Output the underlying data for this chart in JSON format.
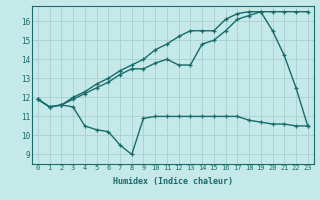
{
  "xlabel": "Humidex (Indice chaleur)",
  "bg_color": "#c5e8e8",
  "grid_color": "#aad4d4",
  "line_color": "#1a6b6b",
  "xlim": [
    -0.5,
    23.5
  ],
  "ylim": [
    8.5,
    16.8
  ],
  "xticks": [
    0,
    1,
    2,
    3,
    4,
    5,
    6,
    7,
    8,
    9,
    10,
    11,
    12,
    13,
    14,
    15,
    16,
    17,
    18,
    19,
    20,
    21,
    22,
    23
  ],
  "yticks": [
    9,
    10,
    11,
    12,
    13,
    14,
    15,
    16
  ],
  "line1_x": [
    0,
    1,
    2,
    3,
    4,
    5,
    6,
    7,
    8,
    9,
    10,
    11,
    12,
    13,
    14,
    15,
    16,
    17,
    18,
    19,
    20,
    21,
    22,
    23
  ],
  "line1_y": [
    11.9,
    11.5,
    11.6,
    11.5,
    10.5,
    10.3,
    10.2,
    9.5,
    9.0,
    10.9,
    11.0,
    11.0,
    11.0,
    11.0,
    11.0,
    11.0,
    11.0,
    11.0,
    10.8,
    10.7,
    10.6,
    10.6,
    10.5,
    10.5
  ],
  "line2_x": [
    0,
    1,
    2,
    3,
    4,
    5,
    6,
    7,
    8,
    9,
    10,
    11,
    12,
    13,
    14,
    15,
    16,
    17,
    18,
    19,
    20,
    21,
    22,
    23
  ],
  "line2_y": [
    11.9,
    11.5,
    11.6,
    11.9,
    12.2,
    12.5,
    12.8,
    13.2,
    13.5,
    13.5,
    13.8,
    14.0,
    13.7,
    13.7,
    14.8,
    15.0,
    15.5,
    16.1,
    16.3,
    16.5,
    15.5,
    14.2,
    12.5,
    10.5
  ],
  "line3_x": [
    0,
    1,
    2,
    3,
    4,
    5,
    6,
    7,
    8,
    9,
    10,
    11,
    12,
    13,
    14,
    15,
    16,
    17,
    18,
    19,
    20,
    21,
    22,
    23
  ],
  "line3_y": [
    11.9,
    11.5,
    11.6,
    12.0,
    12.3,
    12.7,
    13.0,
    13.4,
    13.7,
    14.0,
    14.5,
    14.8,
    15.2,
    15.5,
    15.5,
    15.5,
    16.1,
    16.4,
    16.5,
    16.5,
    16.5,
    16.5,
    16.5,
    16.5
  ]
}
